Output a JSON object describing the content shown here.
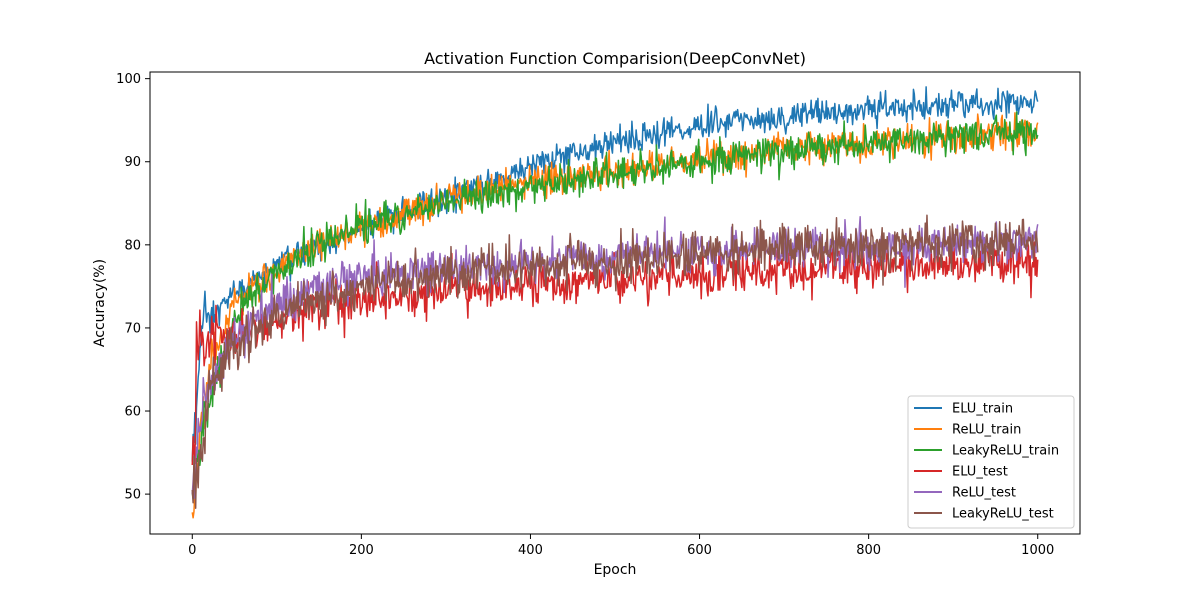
{
  "chart_data": {
    "type": "line",
    "title": "Activation Function Comparision(DeepConvNet)",
    "xlabel": "Epoch",
    "ylabel": "Accuracy(%)",
    "xlim": [
      -50,
      1050
    ],
    "ylim": [
      45.2,
      100.8
    ],
    "xticks": [
      0,
      200,
      400,
      600,
      800,
      1000
    ],
    "yticks": [
      50,
      60,
      70,
      80,
      90,
      100
    ],
    "grid": false,
    "legend_position": "lower right",
    "series": [
      {
        "name": "ELU_train",
        "color": "#1f77b4",
        "noise": 0.9,
        "start": 53.9,
        "points": [
          [
            0,
            53.9
          ],
          [
            5,
            60
          ],
          [
            10,
            69
          ],
          [
            20,
            71
          ],
          [
            50,
            74
          ],
          [
            100,
            77.5
          ],
          [
            150,
            80
          ],
          [
            200,
            82
          ],
          [
            300,
            85.5
          ],
          [
            400,
            89.5
          ],
          [
            500,
            92.5
          ],
          [
            600,
            94.3
          ],
          [
            700,
            95.5
          ],
          [
            800,
            96.3
          ],
          [
            900,
            96.8
          ],
          [
            1000,
            97.2
          ]
        ]
      },
      {
        "name": "ReLU_train",
        "color": "#ff7f0e",
        "noise": 1.0,
        "start": 47.8,
        "points": [
          [
            0,
            47.8
          ],
          [
            5,
            52
          ],
          [
            10,
            58
          ],
          [
            20,
            65
          ],
          [
            50,
            73
          ],
          [
            100,
            77
          ],
          [
            150,
            80
          ],
          [
            200,
            82
          ],
          [
            300,
            85.5
          ],
          [
            400,
            87.5
          ],
          [
            500,
            89
          ],
          [
            600,
            90.3
          ],
          [
            700,
            91.5
          ],
          [
            800,
            92.3
          ],
          [
            900,
            93
          ],
          [
            1000,
            93.5
          ]
        ]
      },
      {
        "name": "LeakyReLU_train",
        "color": "#2ca02c",
        "noise": 1.0,
        "start": 50.2,
        "points": [
          [
            0,
            50.2
          ],
          [
            5,
            53
          ],
          [
            10,
            57
          ],
          [
            20,
            61
          ],
          [
            30,
            65
          ],
          [
            50,
            71
          ],
          [
            100,
            77
          ],
          [
            150,
            80
          ],
          [
            200,
            82
          ],
          [
            300,
            85
          ],
          [
            400,
            87
          ],
          [
            500,
            88.5
          ],
          [
            600,
            90
          ],
          [
            700,
            91.3
          ],
          [
            800,
            92.3
          ],
          [
            900,
            93
          ],
          [
            1000,
            93.6
          ]
        ]
      },
      {
        "name": "ELU_test",
        "color": "#d62728",
        "noise": 1.3,
        "start": 53.5,
        "points": [
          [
            0,
            53.5
          ],
          [
            3,
            57
          ],
          [
            5,
            68
          ],
          [
            10,
            68
          ],
          [
            30,
            69
          ],
          [
            50,
            69.5
          ],
          [
            100,
            71
          ],
          [
            150,
            72.5
          ],
          [
            200,
            73.5
          ],
          [
            300,
            74.5
          ],
          [
            400,
            75.3
          ],
          [
            500,
            75.8
          ],
          [
            600,
            76.5
          ],
          [
            700,
            77
          ],
          [
            800,
            77.3
          ],
          [
            900,
            77.7
          ],
          [
            1000,
            78
          ]
        ]
      },
      {
        "name": "ReLU_test",
        "color": "#9467bd",
        "noise": 1.2,
        "start": 50.0,
        "points": [
          [
            0,
            50
          ],
          [
            5,
            55
          ],
          [
            10,
            59
          ],
          [
            20,
            63
          ],
          [
            50,
            69
          ],
          [
            100,
            73
          ],
          [
            150,
            75
          ],
          [
            200,
            76
          ],
          [
            300,
            77.2
          ],
          [
            400,
            77.8
          ],
          [
            500,
            78.5
          ],
          [
            600,
            79.2
          ],
          [
            700,
            79.5
          ],
          [
            800,
            79.8
          ],
          [
            900,
            80
          ],
          [
            1000,
            80.2
          ]
        ]
      },
      {
        "name": "LeakyReLU_test",
        "color": "#8c564b",
        "noise": 1.3,
        "start": 50.5,
        "points": [
          [
            0,
            50.5
          ],
          [
            5,
            53
          ],
          [
            10,
            56
          ],
          [
            20,
            62
          ],
          [
            50,
            68
          ],
          [
            100,
            71.5
          ],
          [
            150,
            73.5
          ],
          [
            200,
            75
          ],
          [
            300,
            76.5
          ],
          [
            400,
            77.5
          ],
          [
            500,
            78
          ],
          [
            600,
            79
          ],
          [
            700,
            79.5
          ],
          [
            800,
            80
          ],
          [
            900,
            80.2
          ],
          [
            1000,
            80.3
          ]
        ]
      }
    ]
  }
}
